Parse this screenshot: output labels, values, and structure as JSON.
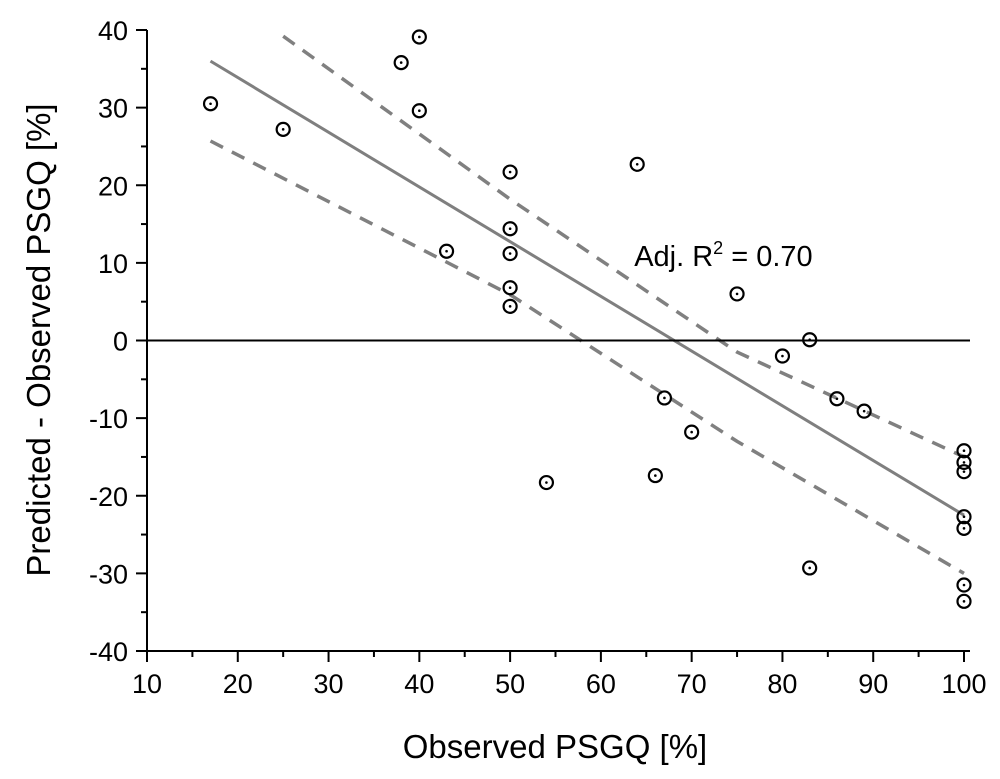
{
  "chart_data": {
    "type": "scatter",
    "title": "",
    "xlabel": "Observed PSGQ [%]",
    "ylabel": "Predicted - Observed PSGQ [%]",
    "xlim": [
      10,
      101
    ],
    "ylim": [
      -40,
      40
    ],
    "xticks": [
      10,
      20,
      30,
      40,
      50,
      60,
      70,
      80,
      90,
      100
    ],
    "yticks": [
      -40,
      -30,
      -20,
      -10,
      0,
      10,
      20,
      30,
      40
    ],
    "xtick_labels": [
      "10",
      "20",
      "30",
      "40",
      "50",
      "60",
      "70",
      "80",
      "90",
      "100"
    ],
    "ytick_labels": [
      "-40",
      "-30",
      "-20",
      "-10",
      "0",
      "10",
      "20",
      "30",
      "40"
    ],
    "grid": false,
    "reference_line_y": 0,
    "series": [
      {
        "name": "observations",
        "kind": "scatter",
        "x": [
          17,
          25,
          38,
          40,
          40,
          43,
          50,
          50,
          50,
          50,
          50,
          54,
          64,
          66,
          67,
          70,
          75,
          80,
          83,
          83,
          86,
          89,
          100,
          100,
          100,
          100,
          100,
          100,
          100
        ],
        "y": [
          30.5,
          27.2,
          35.8,
          39.1,
          29.6,
          11.5,
          21.7,
          14.4,
          11.2,
          6.8,
          4.4,
          -18.3,
          22.7,
          -17.4,
          -7.4,
          -11.8,
          6.0,
          -2.0,
          0.1,
          -29.3,
          -7.5,
          -9.1,
          -14.2,
          -15.7,
          -16.9,
          -22.7,
          -24.2,
          -31.5,
          -33.6
        ]
      },
      {
        "name": "regression fit",
        "kind": "line",
        "style": "solid",
        "x": [
          17,
          100
        ],
        "y": [
          36.0,
          -22.5
        ]
      },
      {
        "name": "upper confidence band",
        "kind": "line",
        "style": "dashed",
        "x": [
          25,
          50,
          75,
          100
        ],
        "y": [
          39.2,
          18.2,
          -1.5,
          -15.0
        ]
      },
      {
        "name": "lower confidence band",
        "kind": "line",
        "style": "dashed",
        "x": [
          17,
          50,
          75,
          100
        ],
        "y": [
          25.7,
          5.9,
          -13.0,
          -30.0
        ]
      }
    ],
    "annotations": [
      {
        "text_main": "Adj. R",
        "text_sup": "2",
        "text_rest": " = 0.70",
        "x": 64,
        "y": 9.6
      }
    ],
    "colors": {
      "marker": "#000000",
      "fit_line": "#7f7f7f",
      "band_line": "#808080",
      "axis": "#000000"
    }
  }
}
